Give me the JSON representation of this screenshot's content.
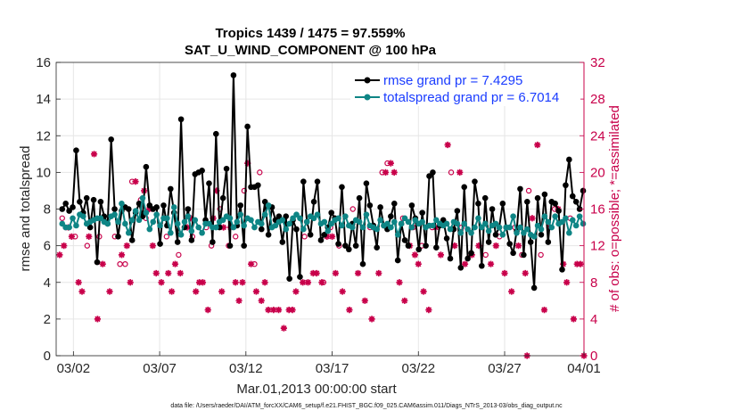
{
  "chart_data": {
    "type": "line",
    "title": "Tropics 1439 / 1475 = 97.559%",
    "subtitle": "SAT_U_WIND_COMPONENT @ 100 hPa",
    "xlabel": "Mar.01,2013 00:00:00 start",
    "ylabel_left": "rmse and totalspread",
    "ylabel_right": "# of obs: o=possible; *=assimilated",
    "x_range": [
      0.4,
      31.0
    ],
    "ylim_left": [
      0,
      16
    ],
    "ylim_right": [
      0,
      32
    ],
    "x_ticks": [
      1.4,
      6.4,
      11.4,
      16.4,
      21.4,
      26.4,
      31.0
    ],
    "x_tick_labels": [
      "03/02",
      "03/07",
      "03/12",
      "03/17",
      "03/22",
      "03/27",
      "04/01"
    ],
    "y_ticks_left": [
      0,
      2,
      4,
      6,
      8,
      10,
      12,
      14,
      16
    ],
    "y_ticks_right": [
      0,
      4,
      8,
      12,
      16,
      20,
      24,
      28,
      32
    ],
    "grid": true,
    "legend_position": "top-right",
    "colors": {
      "rmse": "#000000",
      "spread": "#0e8585",
      "obs": "#c8004a",
      "grid": "#e6e6e6"
    },
    "series": [
      {
        "name": "rmse grand pr = 7.4295",
        "axis": "left",
        "values": [
          8.0,
          8.3,
          7.9,
          8.1,
          11.2,
          8.4,
          7.8,
          8.6,
          7.0,
          8.5,
          5.1,
          8.4,
          7.6,
          7.2,
          11.8,
          8.0,
          6.5,
          7.9,
          8.1,
          8.0,
          6.3,
          7.8,
          8.3,
          7.6,
          10.3,
          8.2,
          8.0,
          8.1,
          6.1,
          8.2,
          7.1,
          9.1,
          7.8,
          6.2,
          12.9,
          7.0,
          8.0,
          6.3,
          9.9,
          10.0,
          10.1,
          7.4,
          9.4,
          6.2,
          12.1,
          7.0,
          8.6,
          10.2,
          6.0,
          15.3,
          7.1,
          8.2,
          6.0,
          12.5,
          9.2,
          9.2,
          9.3,
          6.9,
          8.4,
          6.6,
          8.1,
          7.4,
          7.6,
          6.2,
          7.6,
          4.2,
          7.4,
          6.9,
          4.3,
          9.5,
          7.3,
          6.6,
          8.4,
          9.5,
          6.3,
          6.6,
          7.0,
          7.8,
          7.5,
          6.1,
          9.2,
          6.0,
          5.8,
          7.2,
          6.0,
          8.6,
          5.0,
          9.4,
          8.2,
          7.1,
          5.9,
          8.1,
          7.1,
          6.9,
          7.6,
          8.3,
          5.2,
          7.2,
          6.3,
          6.0,
          8.2,
          7.5,
          5.8,
          7.8,
          6.0,
          9.8,
          10.0,
          5.9,
          7.1,
          7.4,
          6.4,
          5.3,
          6.9,
          7.9,
          4.8,
          9.2,
          5.3,
          5.6,
          9.5,
          8.3,
          4.9,
          8.6,
          6.2,
          8.0,
          6.6,
          7.0,
          8.3,
          7.0,
          6.1,
          5.6,
          6.8,
          9.1,
          5.5,
          8.4,
          6.2,
          3.7,
          8.6,
          6.6,
          8.8,
          6.2,
          8.4,
          8.3,
          7.9,
          4.7,
          9.3,
          10.7,
          8.7,
          8.4,
          8.0,
          9.0
        ],
        "marker": "filled-circle"
      },
      {
        "name": "totalspread grand pr = 6.7014",
        "axis": "left",
        "values": [
          7.2,
          7.0,
          7.0,
          7.5,
          7.1,
          7.7,
          7.6,
          7.2,
          7.3,
          7.4,
          7.5,
          7.5,
          7.3,
          7.2,
          7.6,
          7.7,
          7.3,
          8.3,
          7.2,
          6.7,
          7.4,
          7.9,
          7.4,
          8.6,
          7.8,
          6.9,
          7.3,
          7.7,
          7.1,
          7.5,
          7.5,
          6.7,
          8.1,
          7.2,
          6.6,
          7.3,
          7.6,
          6.8,
          7.4,
          7.0,
          6.7,
          7.2,
          7.2,
          7.0,
          7.0,
          7.3,
          7.4,
          7.6,
          7.5,
          7.0,
          7.3,
          7.7,
          7.1,
          7.5,
          7.4,
          7.0,
          7.3,
          7.2,
          7.7,
          8.2,
          7.0,
          7.1,
          7.3,
          7.4,
          6.9,
          7.2,
          7.5,
          7.7,
          7.5,
          6.9,
          7.3,
          7.6,
          7.5,
          7.7,
          7.2,
          7.3,
          6.8,
          7.2,
          7.4,
          7.5,
          7.1,
          7.6,
          7.1,
          7.0,
          7.4,
          7.3,
          7.0,
          7.7,
          7.1,
          7.0,
          6.9,
          7.4,
          7.1,
          7.2,
          7.0,
          7.3,
          6.6,
          7.2,
          7.5,
          7.3,
          7.0,
          7.4,
          7.2,
          7.3,
          7.0,
          7.1,
          7.1,
          7.4,
          7.2,
          7.1,
          7.2,
          6.9,
          7.3,
          7.2,
          6.7,
          7.2,
          6.9,
          6.7,
          7.0,
          7.5,
          7.0,
          7.2,
          6.8,
          7.1,
          7.2,
          7.0,
          6.6,
          7.0,
          7.0,
          7.6,
          6.7,
          7.0,
          6.7,
          6.9,
          6.6,
          6.5,
          7.1,
          6.9,
          7.6,
          7.3,
          7.0,
          7.6,
          7.2,
          7.3,
          7.5,
          6.7,
          7.4,
          7.1,
          7.6,
          7.2
        ],
        "marker": "filled-circle"
      }
    ],
    "obs_possible": {
      "axis": "right",
      "marker": "o",
      "points": [
        [
          0.75,
          15
        ],
        [
          0.95,
          14
        ],
        [
          1.5,
          13
        ],
        [
          2.2,
          12
        ],
        [
          2.9,
          13
        ],
        [
          3.8,
          13
        ],
        [
          4.1,
          10
        ],
        [
          4.4,
          10
        ],
        [
          4.8,
          19
        ],
        [
          5.3,
          17
        ],
        [
          5.6,
          15
        ],
        [
          6.8,
          13
        ],
        [
          7.5,
          11
        ],
        [
          8.3,
          13
        ],
        [
          9.1,
          14
        ],
        [
          9.4,
          12
        ],
        [
          9.9,
          16
        ],
        [
          10.4,
          12
        ],
        [
          10.8,
          13
        ],
        [
          11.3,
          18
        ],
        [
          11.9,
          10
        ],
        [
          12.2,
          20
        ],
        [
          14.8,
          13
        ],
        [
          15.9,
          8
        ],
        [
          16.3,
          14
        ],
        [
          16.8,
          12
        ],
        [
          17.6,
          16
        ],
        [
          18.6,
          14
        ],
        [
          19.3,
          20
        ],
        [
          19.6,
          21
        ],
        [
          20.5,
          15
        ],
        [
          21.1,
          14
        ],
        [
          21.6,
          12
        ],
        [
          22.2,
          14
        ],
        [
          23.3,
          20
        ],
        [
          23.9,
          14
        ],
        [
          25.3,
          11
        ],
        [
          26.1,
          13
        ],
        [
          27.0,
          14
        ],
        [
          27.4,
          11
        ],
        [
          27.8,
          18
        ],
        [
          28.5,
          11
        ],
        [
          29.3,
          16
        ],
        [
          30.2,
          15
        ]
      ]
    },
    "obs_assimilated": {
      "axis": "right",
      "marker": "*",
      "points": [
        [
          0.6,
          11
        ],
        [
          0.85,
          12
        ],
        [
          1.1,
          14
        ],
        [
          1.3,
          13
        ],
        [
          1.7,
          8
        ],
        [
          1.9,
          7
        ],
        [
          2.3,
          13
        ],
        [
          2.6,
          22
        ],
        [
          2.8,
          4
        ],
        [
          3.1,
          10
        ],
        [
          3.5,
          7
        ],
        [
          4.2,
          11
        ],
        [
          4.5,
          12
        ],
        [
          4.7,
          8
        ],
        [
          5.0,
          19
        ],
        [
          5.5,
          18
        ],
        [
          5.8,
          16
        ],
        [
          6.0,
          12
        ],
        [
          6.2,
          9
        ],
        [
          6.5,
          8
        ],
        [
          6.9,
          9
        ],
        [
          7.1,
          7
        ],
        [
          7.3,
          10
        ],
        [
          7.6,
          9
        ],
        [
          8.0,
          14
        ],
        [
          8.2,
          15
        ],
        [
          8.5,
          7
        ],
        [
          8.7,
          8
        ],
        [
          8.9,
          8
        ],
        [
          9.2,
          5
        ],
        [
          9.5,
          15
        ],
        [
          9.7,
          18
        ],
        [
          10.0,
          7
        ],
        [
          10.1,
          14
        ],
        [
          10.5,
          14
        ],
        [
          10.8,
          8
        ],
        [
          11.0,
          6
        ],
        [
          11.2,
          8
        ],
        [
          11.5,
          21
        ],
        [
          11.7,
          10
        ],
        [
          12.0,
          7
        ],
        [
          12.3,
          6
        ],
        [
          12.5,
          8
        ],
        [
          12.7,
          5
        ],
        [
          13.0,
          5
        ],
        [
          13.3,
          5
        ],
        [
          13.6,
          3
        ],
        [
          13.9,
          5
        ],
        [
          14.1,
          5
        ],
        [
          14.3,
          7
        ],
        [
          14.7,
          8
        ],
        [
          15.0,
          8
        ],
        [
          15.3,
          9
        ],
        [
          15.5,
          9
        ],
        [
          15.8,
          8
        ],
        [
          16.1,
          13
        ],
        [
          16.4,
          13
        ],
        [
          16.6,
          9
        ],
        [
          17.0,
          7
        ],
        [
          17.4,
          5
        ],
        [
          17.9,
          9
        ],
        [
          18.3,
          6
        ],
        [
          18.7,
          4
        ],
        [
          19.1,
          9
        ],
        [
          19.5,
          20
        ],
        [
          19.8,
          21
        ],
        [
          20.0,
          20
        ],
        [
          20.3,
          8
        ],
        [
          20.6,
          6
        ],
        [
          20.9,
          12
        ],
        [
          21.2,
          11
        ],
        [
          21.4,
          10
        ],
        [
          21.7,
          7
        ],
        [
          22.0,
          5
        ],
        [
          22.4,
          14
        ],
        [
          22.7,
          11
        ],
        [
          23.1,
          23
        ],
        [
          23.5,
          12
        ],
        [
          23.8,
          20
        ],
        [
          24.1,
          10
        ],
        [
          24.5,
          11
        ],
        [
          24.9,
          12
        ],
        [
          25.6,
          10
        ],
        [
          25.9,
          12
        ],
        [
          26.4,
          9
        ],
        [
          26.8,
          7
        ],
        [
          27.2,
          12
        ],
        [
          27.6,
          9
        ],
        [
          28.0,
          15
        ],
        [
          28.3,
          23
        ],
        [
          28.7,
          5
        ],
        [
          29.0,
          14
        ],
        [
          29.5,
          16
        ],
        [
          29.8,
          10
        ],
        [
          30.0,
          8
        ],
        [
          30.4,
          4
        ],
        [
          30.6,
          10
        ],
        [
          30.8,
          10
        ]
      ],
      "zero_points": [
        [
          27.7,
          0
        ],
        [
          31.0,
          0
        ]
      ]
    },
    "footnote": "data file: /Users/raeder/DAI/ATM_forcXX/CAM6_setup/f.e21.FHIST_BGC.f09_025.CAM6assim.011/Diags_NTrS_2013-03/obs_diag_output.nc"
  }
}
